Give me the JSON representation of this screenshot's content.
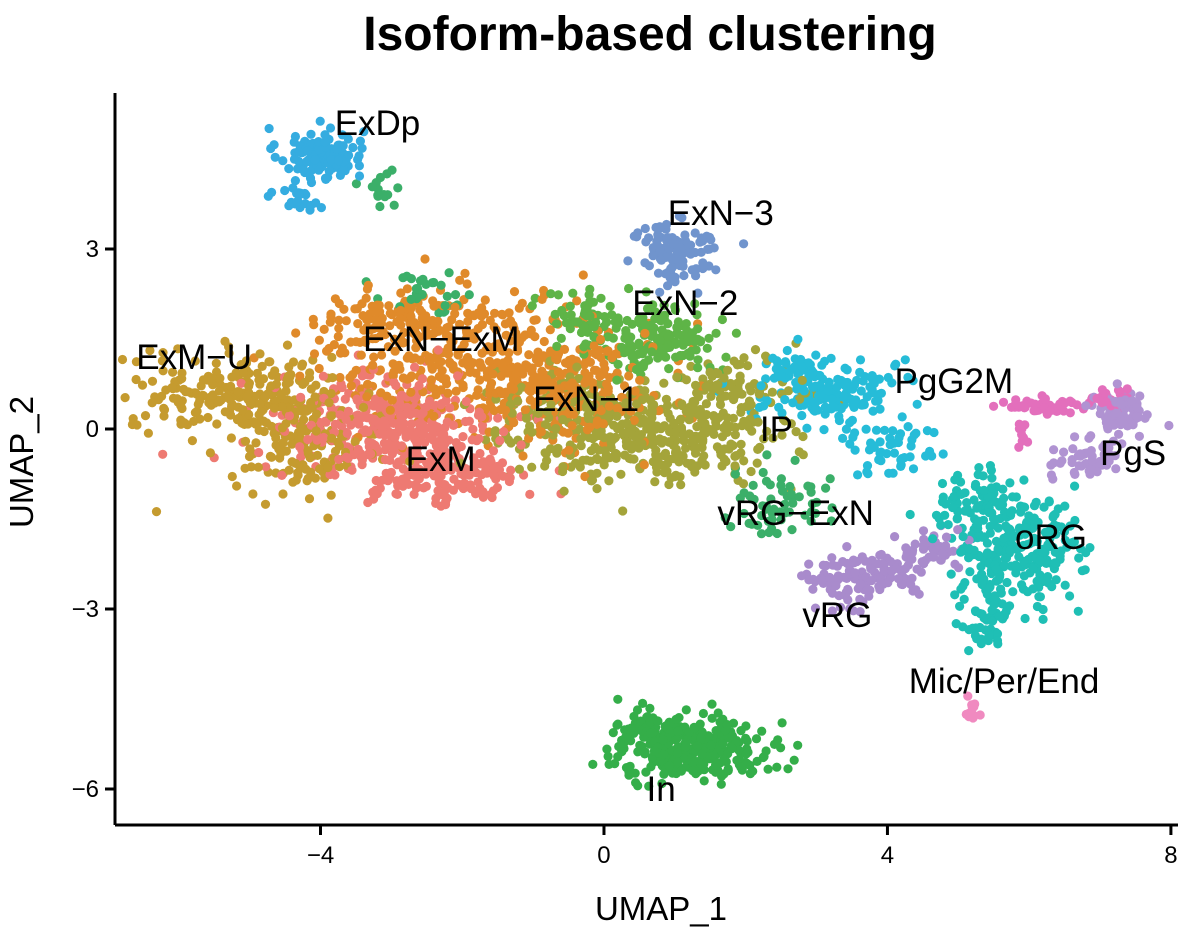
{
  "chart_data": {
    "type": "scatter",
    "title": "Isoform-based clustering",
    "xlabel": "UMAP_1",
    "ylabel": "UMAP_2",
    "xlim": [
      -6.9,
      8.1
    ],
    "ylim": [
      -6.6,
      5.6
    ],
    "xticks": [
      -4,
      0,
      4,
      8
    ],
    "yticks": [
      -6,
      -3,
      0,
      3
    ],
    "xtick_labels": [
      "−4",
      "0",
      "4",
      "8"
    ],
    "ytick_labels": [
      "−6",
      "−3",
      "0",
      "3"
    ],
    "grid": false,
    "legend": "none",
    "clusters": [
      {
        "label": "ExDp",
        "color": "#35ACE0",
        "label_pos": [
          -3.8,
          4.9
        ],
        "blobs": [
          [
            -4.0,
            4.6,
            0.5,
            0.35,
            110
          ],
          [
            -4.3,
            3.9,
            0.3,
            0.3,
            25
          ]
        ]
      },
      {
        "label": "ExN−3",
        "color": "#7094CD",
        "label_pos": [
          0.9,
          3.4
        ],
        "blobs": [
          [
            1.1,
            2.9,
            0.45,
            0.4,
            90
          ],
          [
            0.8,
            3.2,
            0.25,
            0.2,
            20
          ]
        ]
      },
      {
        "label": "ExN−2",
        "color": "#5EB447",
        "label_pos": [
          0.4,
          1.9
        ],
        "blobs": [
          [
            0.8,
            1.5,
            0.7,
            0.5,
            150
          ],
          [
            -0.2,
            1.8,
            0.5,
            0.4,
            60
          ]
        ]
      },
      {
        "label": "ExN−ExM",
        "color": "#E08A2A",
        "label_pos": [
          -3.4,
          1.3
        ],
        "blobs": [
          [
            -1.8,
            1.2,
            1.8,
            0.9,
            400
          ],
          [
            -0.5,
            0.5,
            1.0,
            0.8,
            180
          ],
          [
            -2.9,
            1.8,
            0.9,
            0.4,
            80
          ]
        ]
      },
      {
        "label": "ExM−U",
        "color": "#C59B2F",
        "label_pos": [
          -6.6,
          1.0
        ],
        "blobs": [
          [
            -5.2,
            0.6,
            1.2,
            0.55,
            220
          ],
          [
            -4.2,
            -0.2,
            0.9,
            0.7,
            160
          ]
        ]
      },
      {
        "label": "ExM",
        "color": "#EE7A72",
        "label_pos": [
          -2.8,
          -0.7
        ],
        "blobs": [
          [
            -3.0,
            0.0,
            1.3,
            0.8,
            380
          ],
          [
            -2.2,
            -0.8,
            1.0,
            0.4,
            120
          ]
        ]
      },
      {
        "label": "ExN−1",
        "color": "#A4A43A",
        "label_pos": [
          -1.0,
          0.3
        ],
        "blobs": [
          [
            0.7,
            -0.2,
            1.5,
            0.6,
            320
          ],
          [
            1.8,
            0.6,
            0.8,
            0.5,
            100
          ],
          [
            -0.4,
            0.4,
            1.0,
            0.5,
            120
          ]
        ]
      },
      {
        "label": "IP",
        "color": "#26BCD8",
        "label_pos": [
          2.2,
          -0.2
        ],
        "blobs": [
          [
            3.2,
            0.6,
            0.8,
            0.45,
            150
          ],
          [
            4.0,
            -0.3,
            0.5,
            0.4,
            50
          ],
          [
            2.7,
            1.0,
            0.4,
            0.3,
            40
          ]
        ]
      },
      {
        "label": "PgG2M",
        "color": "#E36FBC",
        "label_pos": [
          4.1,
          0.6
        ],
        "blobs": [
          [
            6.2,
            0.4,
            0.5,
            0.1,
            50
          ],
          [
            7.2,
            0.5,
            0.25,
            0.15,
            25
          ],
          [
            5.9,
            -0.1,
            0.1,
            0.2,
            10
          ]
        ]
      },
      {
        "label": "PgS",
        "color": "#B093D2",
        "label_pos": [
          7.0,
          -0.6
        ],
        "blobs": [
          [
            7.3,
            0.3,
            0.3,
            0.3,
            80
          ],
          [
            6.8,
            -0.5,
            0.4,
            0.3,
            50
          ]
        ]
      },
      {
        "label": "oRG",
        "color": "#1FBFB5",
        "label_pos": [
          5.8,
          -2.0
        ],
        "blobs": [
          [
            5.8,
            -2.0,
            0.7,
            0.8,
            260
          ],
          [
            5.2,
            -1.2,
            0.5,
            0.4,
            60
          ],
          [
            5.4,
            -3.3,
            0.3,
            0.4,
            40
          ]
        ]
      },
      {
        "label": "vRG",
        "color": "#A98BCC",
        "label_pos": [
          2.8,
          -3.3
        ],
        "blobs": [
          [
            3.9,
            -2.4,
            0.6,
            0.3,
            90
          ],
          [
            3.3,
            -2.6,
            0.4,
            0.3,
            40
          ],
          [
            4.7,
            -2.0,
            0.4,
            0.25,
            40
          ]
        ]
      },
      {
        "label": "vRG−ExN",
        "color": "#3BAF69",
        "label_pos": [
          1.6,
          -1.6
        ],
        "blobs": [
          [
            2.4,
            -1.2,
            0.6,
            0.5,
            60
          ],
          [
            -2.5,
            2.3,
            0.5,
            0.3,
            30
          ],
          [
            -3.2,
            4.0,
            0.3,
            0.3,
            15
          ]
        ]
      },
      {
        "label": "Mic/Per/End",
        "color": "#F08AC0",
        "label_pos": [
          4.3,
          -4.4
        ],
        "blobs": [
          [
            5.2,
            -4.7,
            0.15,
            0.15,
            12
          ]
        ]
      },
      {
        "label": "In",
        "color": "#34AE49",
        "label_pos": [
          0.6,
          -6.2
        ],
        "blobs": [
          [
            1.3,
            -5.3,
            0.9,
            0.4,
            300
          ],
          [
            0.5,
            -5.0,
            0.4,
            0.3,
            50
          ]
        ]
      }
    ]
  }
}
